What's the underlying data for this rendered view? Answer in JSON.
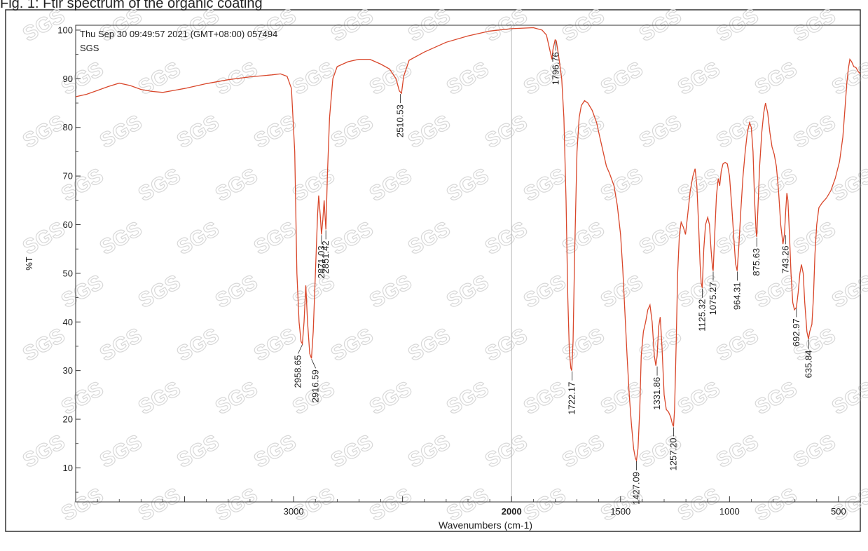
{
  "caption": "Fig. 1: Ftir spectrum of the organic coating",
  "chart_data": {
    "type": "line",
    "header_line1": "Thu Sep 30 09:49:57 2021 (GMT+08:00) 057494",
    "header_line2": "SGS",
    "xlabel": "Wavenumbers (cm-1)",
    "ylabel": "%T",
    "xlim": [
      4000,
      400
    ],
    "ylim": [
      3,
      101
    ],
    "x_ticks": [
      {
        "value": 3000,
        "label": "3000",
        "bold": false
      },
      {
        "value": 2000,
        "label": "2000",
        "bold": true
      },
      {
        "value": 1500,
        "label": "1500",
        "bold": false
      },
      {
        "value": 1000,
        "label": "1000",
        "bold": false
      },
      {
        "value": 500,
        "label": "500",
        "bold": false
      }
    ],
    "y_ticks": [
      {
        "value": 100,
        "label": "100"
      },
      {
        "value": 90,
        "label": "90"
      },
      {
        "value": 80,
        "label": "80"
      },
      {
        "value": 70,
        "label": "70"
      },
      {
        "value": 60,
        "label": "60"
      },
      {
        "value": 50,
        "label": "50"
      },
      {
        "value": 40,
        "label": "40"
      },
      {
        "value": 30,
        "label": "30"
      },
      {
        "value": 20,
        "label": "20"
      },
      {
        "value": 10,
        "label": "10"
      }
    ],
    "line_color": "#d9472b",
    "watermark_text": "SGS",
    "series": [
      {
        "points": [
          [
            4000,
            86.3
          ],
          [
            3950,
            86.8
          ],
          [
            3900,
            87.6
          ],
          [
            3850,
            88.4
          ],
          [
            3800,
            89.1
          ],
          [
            3750,
            88.6
          ],
          [
            3700,
            87.8
          ],
          [
            3650,
            87.4
          ],
          [
            3600,
            87.2
          ],
          [
            3500,
            88.0
          ],
          [
            3400,
            89.0
          ],
          [
            3300,
            89.8
          ],
          [
            3200,
            90.4
          ],
          [
            3100,
            90.8
          ],
          [
            3060,
            91.0
          ],
          [
            3030,
            90.5
          ],
          [
            3010,
            88.0
          ],
          [
            2995,
            75.0
          ],
          [
            2985,
            50.0
          ],
          [
            2975,
            40.0
          ],
          [
            2966,
            36.0
          ],
          [
            2960,
            35.5
          ],
          [
            2952,
            40.0
          ],
          [
            2944,
            47.5
          ],
          [
            2936,
            40.0
          ],
          [
            2926,
            33.5
          ],
          [
            2918,
            32.5
          ],
          [
            2910,
            38.0
          ],
          [
            2900,
            50.0
          ],
          [
            2890,
            62.0
          ],
          [
            2885,
            66.0
          ],
          [
            2878,
            62.0
          ],
          [
            2872,
            58.0
          ],
          [
            2866,
            61.0
          ],
          [
            2860,
            65.0
          ],
          [
            2856,
            62.0
          ],
          [
            2852,
            59.0
          ],
          [
            2845,
            70.0
          ],
          [
            2835,
            82.0
          ],
          [
            2820,
            90.0
          ],
          [
            2800,
            92.5
          ],
          [
            2750,
            93.5
          ],
          [
            2700,
            94.0
          ],
          [
            2650,
            94.0
          ],
          [
            2600,
            93.0
          ],
          [
            2560,
            92.0
          ],
          [
            2530,
            90.0
          ],
          [
            2515,
            87.5
          ],
          [
            2505,
            87.0
          ],
          [
            2495,
            90.5
          ],
          [
            2470,
            93.8
          ],
          [
            2400,
            95.5
          ],
          [
            2300,
            97.5
          ],
          [
            2200,
            98.8
          ],
          [
            2100,
            99.8
          ],
          [
            2000,
            100.3
          ],
          [
            1900,
            100.5
          ],
          [
            1860,
            100.0
          ],
          [
            1840,
            99.0
          ],
          [
            1825,
            96.0
          ],
          [
            1815,
            94.0
          ],
          [
            1810,
            96.0
          ],
          [
            1800,
            98.0
          ],
          [
            1795,
            97.8
          ],
          [
            1785,
            95.0
          ],
          [
            1770,
            90.0
          ],
          [
            1760,
            82.0
          ],
          [
            1750,
            65.0
          ],
          [
            1742,
            45.0
          ],
          [
            1735,
            34.0
          ],
          [
            1728,
            30.5
          ],
          [
            1724,
            30.0
          ],
          [
            1718,
            36.0
          ],
          [
            1710,
            55.0
          ],
          [
            1700,
            75.0
          ],
          [
            1690,
            82.0
          ],
          [
            1680,
            84.5
          ],
          [
            1665,
            85.5
          ],
          [
            1650,
            85.0
          ],
          [
            1630,
            83.5
          ],
          [
            1610,
            81.0
          ],
          [
            1595,
            78.0
          ],
          [
            1580,
            75.0
          ],
          [
            1565,
            72.0
          ],
          [
            1550,
            70.5
          ],
          [
            1530,
            68.0
          ],
          [
            1515,
            64.0
          ],
          [
            1500,
            58.0
          ],
          [
            1490,
            51.0
          ],
          [
            1480,
            42.0
          ],
          [
            1470,
            33.0
          ],
          [
            1460,
            25.0
          ],
          [
            1450,
            19.0
          ],
          [
            1440,
            14.0
          ],
          [
            1432,
            12.0
          ],
          [
            1427,
            11.5
          ],
          [
            1420,
            14.0
          ],
          [
            1412,
            22.0
          ],
          [
            1405,
            33.0
          ],
          [
            1395,
            38.0
          ],
          [
            1385,
            40.0
          ],
          [
            1375,
            42.5
          ],
          [
            1365,
            43.5
          ],
          [
            1355,
            40.0
          ],
          [
            1345,
            33.0
          ],
          [
            1338,
            31.0
          ],
          [
            1332,
            33.0
          ],
          [
            1325,
            39.0
          ],
          [
            1318,
            41.0
          ],
          [
            1310,
            35.0
          ],
          [
            1300,
            25.0
          ],
          [
            1290,
            22.0
          ],
          [
            1280,
            21.5
          ],
          [
            1270,
            20.5
          ],
          [
            1262,
            19.0
          ],
          [
            1257,
            18.5
          ],
          [
            1252,
            22.0
          ],
          [
            1245,
            35.0
          ],
          [
            1238,
            50.0
          ],
          [
            1230,
            58.0
          ],
          [
            1222,
            60.5
          ],
          [
            1212,
            59.5
          ],
          [
            1202,
            58.0
          ],
          [
            1192,
            62.0
          ],
          [
            1180,
            67.0
          ],
          [
            1168,
            70.0
          ],
          [
            1158,
            71.5
          ],
          [
            1150,
            68.0
          ],
          [
            1142,
            60.0
          ],
          [
            1135,
            52.0
          ],
          [
            1130,
            48.0
          ],
          [
            1125,
            47.0
          ],
          [
            1118,
            55.0
          ],
          [
            1110,
            60.0
          ],
          [
            1100,
            61.5
          ],
          [
            1092,
            60.0
          ],
          [
            1085,
            55.0
          ],
          [
            1078,
            51.0
          ],
          [
            1075,
            50.5
          ],
          [
            1068,
            58.0
          ],
          [
            1060,
            66.0
          ],
          [
            1052,
            69.5
          ],
          [
            1045,
            68.0
          ],
          [
            1038,
            71.0
          ],
          [
            1030,
            72.5
          ],
          [
            1020,
            72.8
          ],
          [
            1010,
            72.5
          ],
          [
            1000,
            70.0
          ],
          [
            990,
            64.0
          ],
          [
            980,
            57.0
          ],
          [
            972,
            52.0
          ],
          [
            965,
            50.5
          ],
          [
            958,
            55.0
          ],
          [
            948,
            63.0
          ],
          [
            938,
            70.0
          ],
          [
            928,
            75.0
          ],
          [
            918,
            79.0
          ],
          [
            908,
            81.0
          ],
          [
            900,
            80.0
          ],
          [
            892,
            75.0
          ],
          [
            885,
            65.0
          ],
          [
            878,
            58.5
          ],
          [
            875,
            57.5
          ],
          [
            870,
            63.0
          ],
          [
            862,
            72.0
          ],
          [
            852,
            79.0
          ],
          [
            843,
            83.0
          ],
          [
            835,
            85.0
          ],
          [
            825,
            83.0
          ],
          [
            815,
            79.0
          ],
          [
            805,
            76.0
          ],
          [
            795,
            74.5
          ],
          [
            785,
            72.0
          ],
          [
            775,
            67.0
          ],
          [
            765,
            60.0
          ],
          [
            755,
            56.0
          ],
          [
            748,
            58.0
          ],
          [
            742,
            63.0
          ],
          [
            737,
            66.5
          ],
          [
            732,
            65.0
          ],
          [
            725,
            58.0
          ],
          [
            718,
            50.0
          ],
          [
            710,
            44.0
          ],
          [
            702,
            42.5
          ],
          [
            693,
            43.0
          ],
          [
            685,
            46.0
          ],
          [
            677,
            50.0
          ],
          [
            670,
            51.8
          ],
          [
            662,
            50.0
          ],
          [
            655,
            44.0
          ],
          [
            645,
            38.0
          ],
          [
            638,
            36.5
          ],
          [
            632,
            38.0
          ],
          [
            622,
            39.5
          ],
          [
            615,
            45.0
          ],
          [
            608,
            54.0
          ],
          [
            600,
            60.0
          ],
          [
            590,
            63.5
          ],
          [
            575,
            64.5
          ],
          [
            555,
            65.5
          ],
          [
            535,
            67.0
          ],
          [
            515,
            69.5
          ],
          [
            495,
            73.0
          ],
          [
            480,
            78.0
          ],
          [
            470,
            84.0
          ],
          [
            462,
            89.0
          ],
          [
            455,
            92.0
          ],
          [
            448,
            94.0
          ],
          [
            440,
            93.5
          ],
          [
            430,
            92.5
          ],
          [
            420,
            92.3
          ],
          [
            410,
            91.5
          ],
          [
            400,
            91.0
          ]
        ]
      }
    ],
    "peak_labels": [
      {
        "label": "2958.65",
        "x": 2960,
        "y": 35.5
      },
      {
        "label": "2916.59",
        "x": 2918,
        "y": 32.5
      },
      {
        "label": "2871.03",
        "x": 2872,
        "y": 58.0
      },
      {
        "label": "2851.42",
        "x": 2852,
        "y": 59.0
      },
      {
        "label": "2510.53",
        "x": 2510,
        "y": 87.0
      },
      {
        "label": "1796.76",
        "x": 1797,
        "y": 97.8
      },
      {
        "label": "1722.17",
        "x": 1722,
        "y": 30.0
      },
      {
        "label": "1427.09",
        "x": 1427,
        "y": 11.5
      },
      {
        "label": "1331.86",
        "x": 1332,
        "y": 31.0
      },
      {
        "label": "1257.20",
        "x": 1257,
        "y": 18.5
      },
      {
        "label": "1125.32",
        "x": 1125,
        "y": 47.0
      },
      {
        "label": "1075.27",
        "x": 1075,
        "y": 50.5
      },
      {
        "label": "964.31",
        "x": 964,
        "y": 50.5
      },
      {
        "label": "875.63",
        "x": 875,
        "y": 57.5
      },
      {
        "label": "743.26",
        "x": 743,
        "y": 58.0
      },
      {
        "label": "692.97",
        "x": 693,
        "y": 43.0
      },
      {
        "label": "635.84",
        "x": 636,
        "y": 36.5
      }
    ]
  }
}
